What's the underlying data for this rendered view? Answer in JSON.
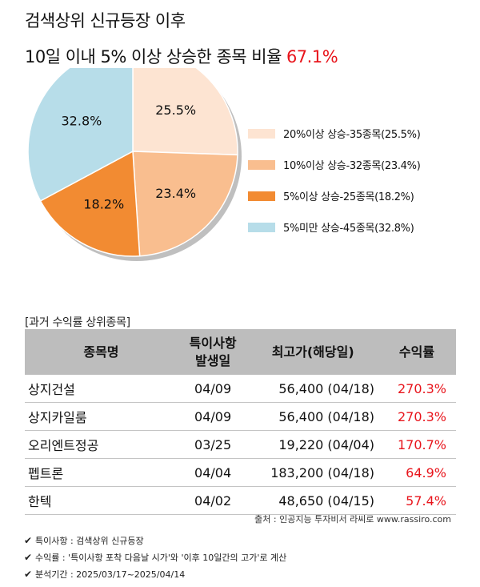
{
  "header": {
    "title_line1": "검색상위 신규등장 이후",
    "title_line2": "10일 이내 5% 이상 상승한 종목 비율",
    "title_pct": "67.1%"
  },
  "chart_data": {
    "type": "pie",
    "slices": [
      {
        "label": "20%이상 상승-35종목(25.5%)",
        "value": 25.5,
        "value_label": "25.5%",
        "color": "#fde4d2"
      },
      {
        "label": "10%이상 상승-32종목(23.4%)",
        "value": 23.4,
        "value_label": "23.4%",
        "color": "#f9be8f"
      },
      {
        "label": "5%이상 상승-25종목(18.2%)",
        "value": 18.2,
        "value_label": "18.2%",
        "color": "#f28b32"
      },
      {
        "label": "5%미만 상승-45종목(32.8%)",
        "value": 32.8,
        "value_label": "32.8%",
        "color": "#b7dde9"
      }
    ],
    "start_angle": "12 o'clock",
    "direction": "clockwise",
    "legend_position": "right"
  },
  "table": {
    "caption": "[과거 수익률 상위종목]",
    "headers": {
      "name": "종목명",
      "date_line1": "특이사항",
      "date_line2": "발생일",
      "high": "최고가(해당일)",
      "ret": "수익률"
    },
    "rows": [
      {
        "name": "상지건설",
        "date": "04/09",
        "high": "56,400 (04/18)",
        "ret": "270.3%"
      },
      {
        "name": "상지카일룸",
        "date": "04/09",
        "high": "56,400 (04/18)",
        "ret": "270.3%"
      },
      {
        "name": "오리엔트정공",
        "date": "03/25",
        "high": "19,220 (04/04)",
        "ret": "170.7%"
      },
      {
        "name": "펩트론",
        "date": "04/04",
        "high": "183,200 (04/18)",
        "ret": "64.9%"
      },
      {
        "name": "한텍",
        "date": "04/02",
        "high": "48,650 (04/15)",
        "ret": "57.4%"
      }
    ]
  },
  "source": "출처 : 인공지능 투자비서 라씨로 www.rassiro.com",
  "notes": [
    "특이사항 : 검색상위 신규등장",
    "수익률 : '특이사항 포착 다음날 시가'와 '이후 10일간의 고가'로 계산",
    "분석기간 : 2025/03/17~2025/04/14"
  ],
  "colors": {
    "accent_red": "#e8141b",
    "table_header_bg": "#bdbdbd"
  }
}
